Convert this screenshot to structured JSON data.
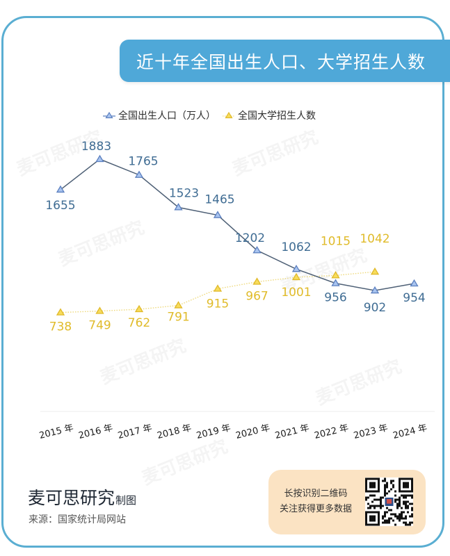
{
  "title": "近十年全国出生人口、大学招生人数",
  "legend": [
    {
      "label": "全国出生人口（万人）",
      "color": "#5b7fbf"
    },
    {
      "label": "全国大学招生人数",
      "color": "#e8c530"
    }
  ],
  "colors": {
    "frame_border": "#5aaed2",
    "title_bg": "#4fa8d8",
    "series_birth_line": "#4d5f75",
    "series_birth_marker": "#6f94d6",
    "series_birth_label": "#3f6c93",
    "series_enroll": "#e6c12c",
    "series_enroll_label": "#e0bb2a",
    "qr_card_bg": "#fbe3c3"
  },
  "chart_data": {
    "type": "line",
    "title": "近十年全国出生人口、大学招生人数",
    "categories": [
      "2015 年",
      "2016 年",
      "2017 年",
      "2018 年",
      "2019 年",
      "2020 年",
      "2021 年",
      "2022 年",
      "2023 年",
      "2024 年"
    ],
    "series": [
      {
        "name": "全国出生人口（万人）",
        "values": [
          1655,
          1883,
          1765,
          1523,
          1465,
          1202,
          1062,
          956,
          902,
          954
        ],
        "style": "solid",
        "marker": "triangle"
      },
      {
        "name": "全国大学招生人数",
        "values": [
          738,
          749,
          762,
          791,
          915,
          967,
          1001,
          1015,
          1042,
          null
        ],
        "style": "dotted",
        "marker": "triangle"
      }
    ],
    "xlabel": "",
    "ylabel": "",
    "grid": false,
    "legend_position": "top",
    "data_labels": true
  },
  "watermark": "麦可思研究",
  "footer": {
    "brand": "麦可思研究",
    "brand_suffix": "制图",
    "source": "来源：国家统计局网站",
    "qr_line1": "长按识别二维码",
    "qr_line2": "关注获得更多数据"
  }
}
